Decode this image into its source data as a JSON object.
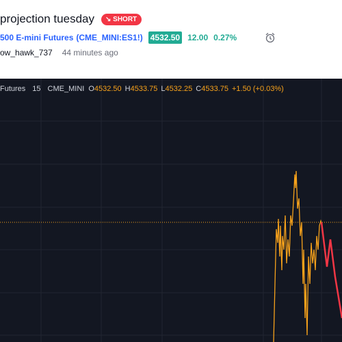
{
  "header": {
    "title": "projection tuesday",
    "badge": "SHORT"
  },
  "symbol": {
    "name": "500 E-mini Futures",
    "ticker": "(CME_MINI:ES1!)",
    "price": "4532.50",
    "change": "12.00",
    "change_percent": "0.27%"
  },
  "author": {
    "name": "ow_hawk_737",
    "time": "44 minutes ago"
  },
  "chart": {
    "symbol": "Futures",
    "interval": "15",
    "exchange": "CME_MINI",
    "ohlc": [
      {
        "label": "O",
        "value": "4532.50"
      },
      {
        "label": "H",
        "value": "4533.75"
      },
      {
        "label": "L",
        "value": "4532.25"
      },
      {
        "label": "C",
        "value": "4533.75"
      }
    ],
    "change": "+1.50 (+0.03%)"
  }
}
